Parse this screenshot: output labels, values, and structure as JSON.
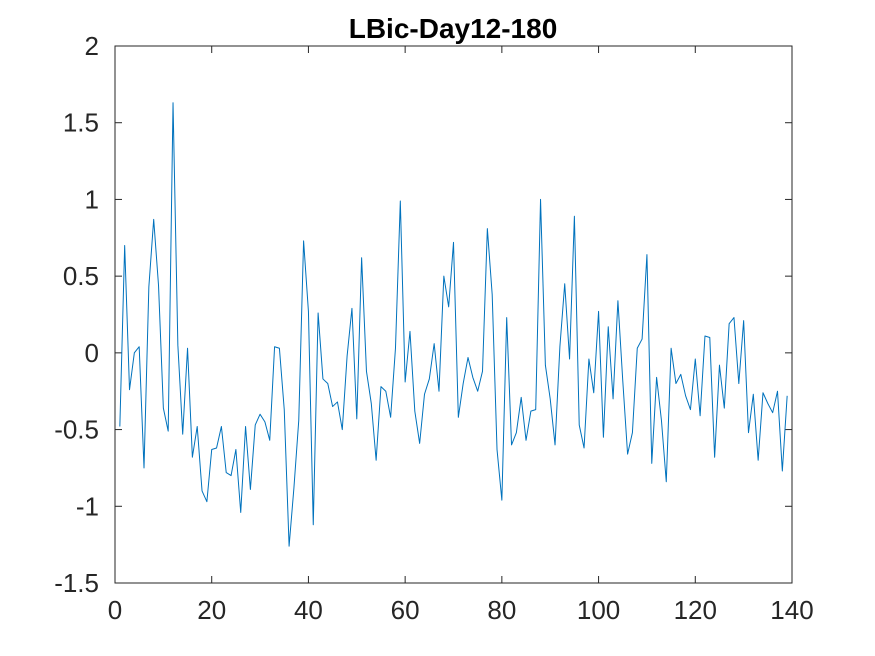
{
  "chart_data": {
    "type": "line",
    "title": "LBic-Day12-180",
    "xlabel": "",
    "ylabel": "",
    "xlim": [
      0,
      140
    ],
    "ylim": [
      -1.5,
      2
    ],
    "xticks": [
      0,
      20,
      40,
      60,
      80,
      100,
      120,
      140
    ],
    "yticks": [
      -1.5,
      -1,
      -0.5,
      0,
      0.5,
      1,
      1.5,
      2
    ],
    "xtick_labels": [
      "0",
      "20",
      "40",
      "60",
      "80",
      "100",
      "120",
      "140"
    ],
    "ytick_labels": [
      "-1.5",
      "-1",
      "-0.5",
      "0",
      "0.5",
      "1",
      "1.5",
      "2"
    ],
    "grid": false,
    "box": true,
    "series": [
      {
        "color": "#0072BD",
        "x": [
          1,
          2,
          3,
          4,
          5,
          6,
          7,
          8,
          9,
          10,
          11,
          12,
          13,
          14,
          15,
          16,
          17,
          18,
          19,
          20,
          21,
          22,
          23,
          24,
          25,
          26,
          27,
          28,
          29,
          30,
          31,
          32,
          33,
          34,
          35,
          36,
          37,
          38,
          39,
          40,
          41,
          42,
          43,
          44,
          45,
          46,
          47,
          48,
          49,
          50,
          51,
          52,
          53,
          54,
          55,
          56,
          57,
          58,
          59,
          60,
          61,
          62,
          63,
          64,
          65,
          66,
          67,
          68,
          69,
          70,
          71,
          72,
          73,
          74,
          75,
          76,
          77,
          78,
          79,
          80,
          81,
          82,
          83,
          84,
          85,
          86,
          87,
          88,
          89,
          90,
          91,
          92,
          93,
          94,
          95,
          96,
          97,
          98,
          99,
          100,
          101,
          102,
          103,
          104,
          105,
          106,
          107,
          108,
          109,
          110,
          111,
          112,
          113,
          114,
          115,
          116,
          117,
          118,
          119,
          120,
          121,
          122,
          123,
          124,
          125,
          126,
          127,
          128,
          129,
          130,
          131,
          132,
          133,
          134,
          135,
          136,
          137,
          138,
          139
        ],
        "y": [
          -0.48,
          0.7,
          -0.24,
          0.0,
          0.04,
          -0.75,
          0.43,
          0.87,
          0.44,
          -0.36,
          -0.51,
          1.63,
          0.05,
          -0.53,
          0.03,
          -0.68,
          -0.48,
          -0.9,
          -0.97,
          -0.63,
          -0.62,
          -0.48,
          -0.78,
          -0.8,
          -0.63,
          -1.04,
          -0.48,
          -0.89,
          -0.47,
          -0.4,
          -0.45,
          -0.57,
          0.04,
          0.03,
          -0.37,
          -1.26,
          -0.88,
          -0.44,
          0.73,
          0.27,
          -1.12,
          0.26,
          -0.17,
          -0.2,
          -0.35,
          -0.32,
          -0.5,
          -0.02,
          0.29,
          -0.43,
          0.62,
          -0.12,
          -0.33,
          -0.7,
          -0.22,
          -0.25,
          -0.42,
          0.03,
          0.99,
          -0.19,
          0.14,
          -0.38,
          -0.59,
          -0.27,
          -0.17,
          0.06,
          -0.25,
          0.5,
          0.3,
          0.72,
          -0.42,
          -0.2,
          -0.03,
          -0.16,
          -0.25,
          -0.12,
          0.81,
          0.38,
          -0.63,
          -0.96,
          0.23,
          -0.6,
          -0.52,
          -0.29,
          -0.57,
          -0.38,
          -0.37,
          1.0,
          -0.08,
          -0.3,
          -0.6,
          0.04,
          0.45,
          -0.04,
          0.89,
          -0.47,
          -0.62,
          -0.04,
          -0.26,
          0.27,
          -0.55,
          0.17,
          -0.3,
          0.34,
          -0.18,
          -0.66,
          -0.52,
          0.03,
          0.09,
          0.64,
          -0.72,
          -0.16,
          -0.44,
          -0.84,
          0.03,
          -0.2,
          -0.14,
          -0.28,
          -0.37,
          -0.04,
          -0.41,
          0.11,
          0.1,
          -0.68,
          -0.08,
          -0.36,
          0.19,
          0.23,
          -0.2,
          0.21,
          -0.52,
          -0.27,
          -0.7,
          -0.26,
          -0.33,
          -0.39,
          -0.25,
          -0.77,
          -0.28
        ]
      }
    ]
  }
}
